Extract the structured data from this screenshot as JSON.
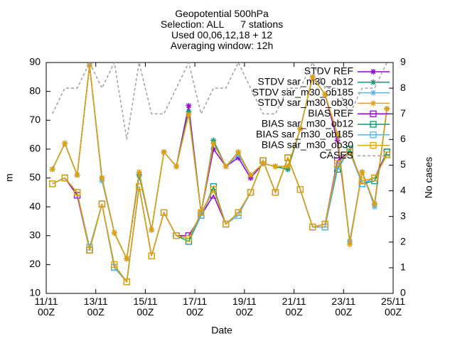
{
  "chart_data": {
    "type": "line",
    "title": "Geopotential 500hPa\nSelection: ALL      7 stations\nUsed 00,06,12,18 + 12\nAveraging window: 12h",
    "xlabel": "Date",
    "ylabel": "m",
    "y2label": "No cases",
    "x": [
      6,
      18,
      30,
      42,
      54,
      66,
      78,
      90,
      102,
      114,
      126,
      138,
      150,
      162,
      174,
      186,
      198,
      210,
      222,
      234,
      246,
      258,
      270,
      282,
      294,
      306,
      318,
      330
    ],
    "xlim": [
      0,
      336
    ],
    "xticks": [
      {
        "value": 0,
        "label": "11/11\n00Z"
      },
      {
        "value": 48,
        "label": "13/11\n00Z"
      },
      {
        "value": 96,
        "label": "15/11\n00Z"
      },
      {
        "value": 144,
        "label": "17/11\n00Z"
      },
      {
        "value": 192,
        "label": "19/11\n00Z"
      },
      {
        "value": 240,
        "label": "21/11\n00Z"
      },
      {
        "value": 288,
        "label": "23/11\n00Z"
      },
      {
        "value": 336,
        "label": "25/11\n00Z"
      }
    ],
    "ylim": [
      10,
      90
    ],
    "yticks": [
      10,
      20,
      30,
      40,
      50,
      60,
      70,
      80,
      90
    ],
    "y2lim": [
      0,
      9
    ],
    "y2ticks": [
      0,
      1,
      2,
      3,
      4,
      5,
      6,
      7,
      8,
      9
    ],
    "series": [
      {
        "name": "STDV REF",
        "color": "#9400d3",
        "marker": "star",
        "values": [
          53,
          62,
          51,
          89,
          50,
          31,
          22,
          51,
          32,
          59,
          54,
          75,
          38,
          60,
          54,
          57,
          50,
          55,
          54,
          53,
          67,
          85,
          79,
          63,
          28,
          52,
          41,
          74
        ]
      },
      {
        "name": "STDV sar_m30_ob12",
        "color": "#009e73",
        "marker": "star",
        "values": [
          53,
          62,
          51,
          89,
          50,
          31,
          22,
          51,
          32,
          59,
          54,
          73,
          38,
          63,
          54,
          59,
          51,
          55,
          54,
          53,
          67,
          85,
          79,
          65,
          28,
          52,
          41,
          74
        ]
      },
      {
        "name": "STDV sar_m30_ob185",
        "color": "#56b4e9",
        "marker": "star",
        "values": [
          53,
          62,
          51,
          89,
          49,
          31,
          22,
          52,
          32,
          59,
          54,
          72,
          38,
          62,
          54,
          58,
          51,
          55,
          54,
          54,
          67,
          85,
          79,
          65,
          28,
          52,
          40,
          74
        ]
      },
      {
        "name": "STDV sar_m30_ob30",
        "color": "#e69f00",
        "marker": "star",
        "values": [
          53,
          62,
          51,
          89,
          50,
          31,
          22,
          52,
          32,
          59,
          54,
          72,
          38,
          62,
          54,
          59,
          51,
          55,
          54,
          54,
          67,
          85,
          79,
          65,
          27,
          52,
          41,
          74
        ]
      },
      {
        "name": "BIAS REF",
        "color": "#9400d3",
        "marker": "square",
        "values": [
          48,
          50,
          44,
          25,
          41,
          19,
          14,
          47,
          23,
          38,
          30,
          30,
          37,
          44,
          34,
          38,
          45,
          56,
          45,
          57,
          46,
          33,
          34,
          56,
          59,
          48,
          50,
          59
        ]
      },
      {
        "name": "BIAS sar_m30_ob12",
        "color": "#009e73",
        "marker": "square",
        "values": [
          48,
          50,
          45,
          25,
          41,
          19,
          14,
          47,
          23,
          38,
          30,
          28,
          37,
          47,
          34,
          38,
          45,
          56,
          45,
          57,
          46,
          33,
          33,
          53,
          60,
          48,
          49,
          59
        ]
      },
      {
        "name": "BIAS sar_m30_ob185",
        "color": "#56b4e9",
        "marker": "square",
        "values": [
          48,
          50,
          45,
          26,
          41,
          19,
          14,
          47,
          23,
          38,
          30,
          29,
          37,
          46,
          34,
          37,
          45,
          56,
          45,
          57,
          46,
          33,
          33,
          54,
          59,
          48,
          50,
          58
        ]
      },
      {
        "name": "BIAS sar_m30_ob30",
        "color": "#e69f00",
        "marker": "square",
        "values": [
          48,
          50,
          45,
          25,
          41,
          20,
          14,
          47,
          23,
          38,
          30,
          29,
          38,
          46,
          34,
          38,
          45,
          56,
          45,
          57,
          46,
          33,
          34,
          55,
          59,
          49,
          50,
          58
        ]
      },
      {
        "name": "CASES",
        "color": "#a0a0a0",
        "marker": "none",
        "dashed": true,
        "axis": "y2",
        "values": [
          7,
          8,
          8,
          9,
          8,
          9,
          6,
          9,
          7,
          7,
          8,
          9,
          7,
          8,
          8,
          9,
          8,
          7,
          7,
          8,
          8,
          9,
          8,
          8,
          7,
          8,
          8,
          9
        ]
      }
    ],
    "legend": "top-right"
  }
}
